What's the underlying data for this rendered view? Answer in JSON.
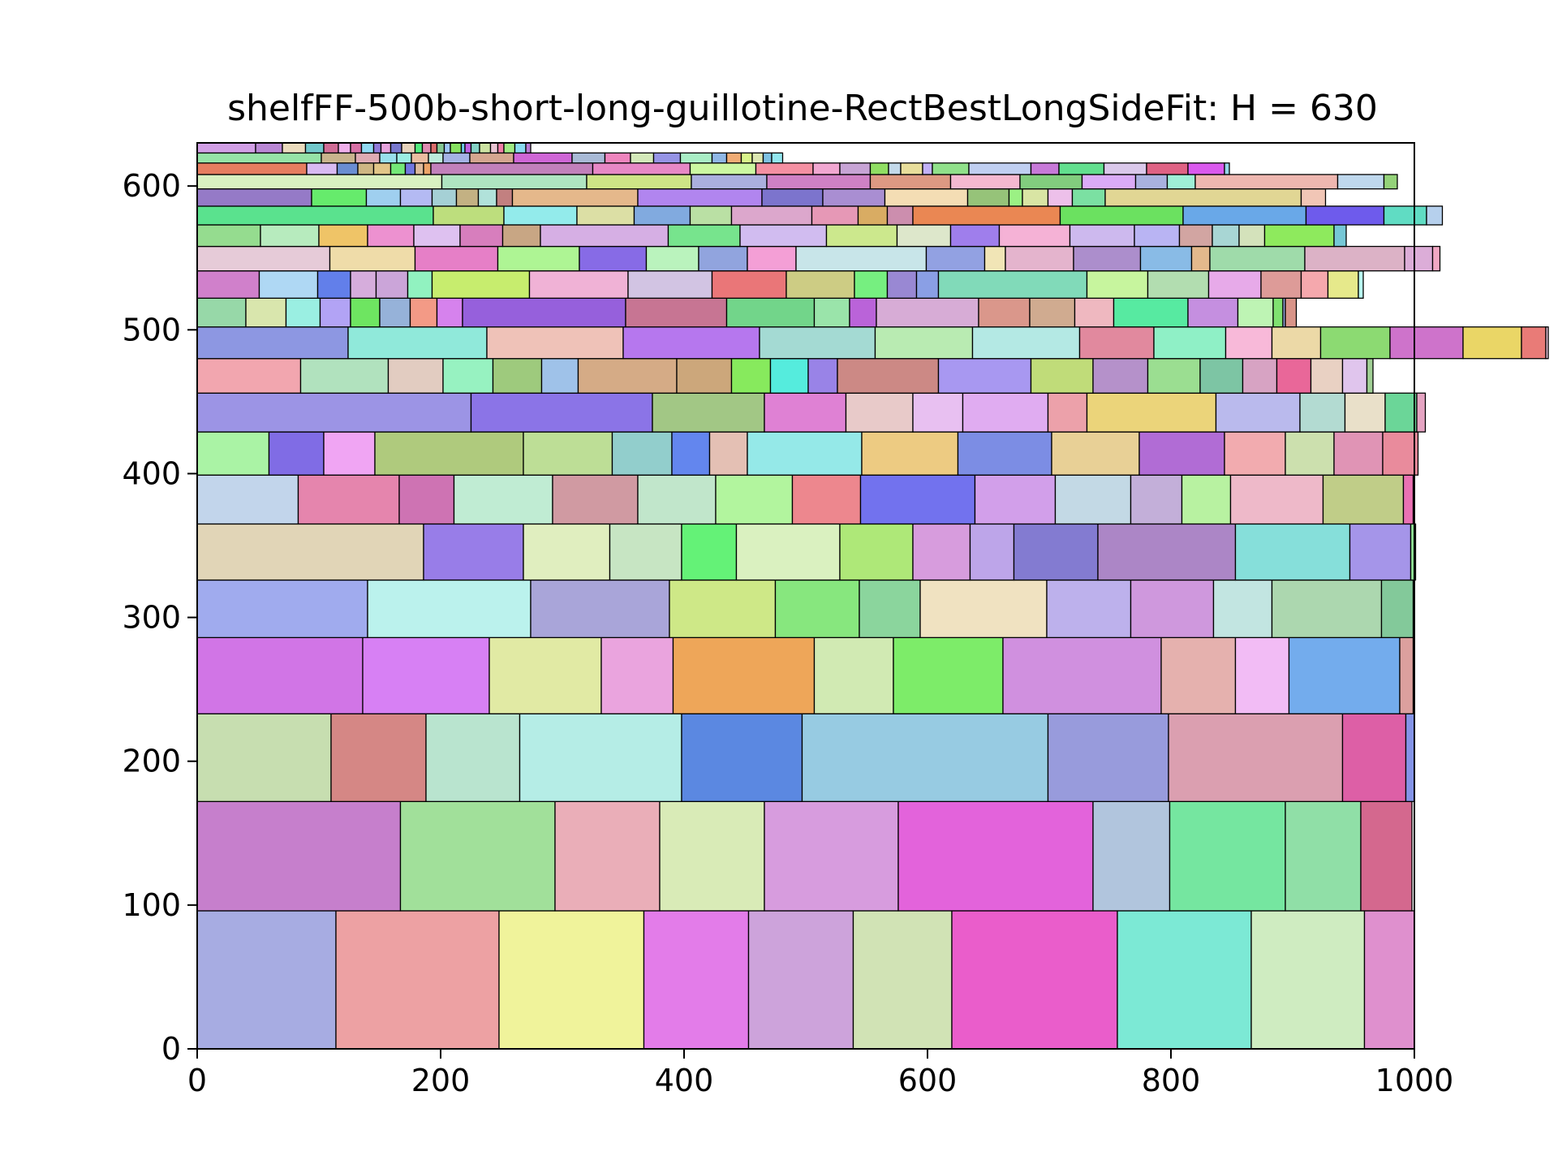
{
  "chart_data": {
    "type": "rectangle-packing",
    "title": "shelfFF-500b-short-long-guillotine-RectBestLongSideFit: H = 630",
    "xlabel": "",
    "ylabel": "",
    "xlim": [
      0,
      1000
    ],
    "ylim": [
      0,
      630
    ],
    "x_ticks": [
      "0",
      "200",
      "400",
      "600",
      "800",
      "1000"
    ],
    "y_ticks": [
      "0",
      "100",
      "200",
      "300",
      "400",
      "500",
      "600"
    ],
    "grid": false,
    "legend": "none",
    "shelves": [
      {
        "y": 0,
        "height": 96,
        "widths": [
          114,
          134,
          119,
          86,
          86,
          81,
          136,
          110,
          93,
          41
        ]
      },
      {
        "y": 96,
        "height": 76,
        "widths": [
          167,
          127,
          86,
          86,
          110,
          160,
          63,
          95,
          62,
          42
        ]
      },
      {
        "y": 172,
        "height": 61,
        "widths": [
          110,
          78,
          77,
          133,
          99,
          202,
          99,
          143,
          52,
          7
        ]
      },
      {
        "y": 233,
        "height": 53,
        "widths": [
          136,
          104,
          92,
          59,
          116,
          65,
          90,
          130,
          61,
          44,
          91,
          11
        ]
      },
      {
        "y": 286,
        "height": 40,
        "widths": [
          140,
          134,
          114,
          87,
          69,
          50,
          104,
          69,
          68,
          48,
          90,
          26
        ]
      },
      {
        "y": 326,
        "height": 39,
        "widths": [
          186,
          82,
          71,
          59,
          45,
          85,
          60,
          47,
          36,
          69,
          113,
          94,
          50,
          4
        ]
      },
      {
        "y": 365,
        "height": 34,
        "widths": [
          83,
          83,
          45,
          81,
          70,
          64,
          63,
          56,
          94,
          66,
          62,
          42,
          40,
          76,
          66,
          8
        ]
      },
      {
        "y": 399,
        "height": 30,
        "widths": [
          59,
          45,
          42,
          122,
          73,
          49,
          31,
          31,
          94,
          79,
          77,
          72,
          70,
          50,
          40,
          40,
          29
        ]
      },
      {
        "y": 429,
        "height": 27,
        "widths": [
          225,
          149,
          92,
          67,
          55,
          41,
          70,
          32,
          106,
          69,
          37,
          33,
          26,
          7
        ]
      },
      {
        "y": 456,
        "height": 24,
        "widths": [
          85,
          72,
          45,
          41,
          40,
          30,
          81,
          45,
          32,
          31,
          24,
          83,
          76,
          51,
          45,
          43,
          35,
          28,
          28,
          26,
          20,
          5
        ]
      },
      {
        "y": 480,
        "height": 22,
        "widths": [
          124,
          114,
          112,
          112,
          95,
          80,
          88,
          61,
          59,
          38,
          40,
          57,
          60,
          48,
          20,
          2
        ]
      },
      {
        "y": 502,
        "height": 20,
        "widths": [
          40,
          33,
          28,
          25,
          24,
          25,
          22,
          21,
          134,
          83,
          72,
          29,
          22,
          84,
          42,
          37,
          32,
          61,
          41,
          29,
          8,
          2,
          9
        ]
      },
      {
        "y": 522,
        "height": 19,
        "widths": [
          51,
          48,
          27,
          21,
          26,
          20,
          80,
          81,
          69,
          61,
          56,
          27,
          24,
          18,
          122,
          50,
          50,
          43,
          33,
          22,
          25,
          4
        ]
      },
      {
        "y": 541,
        "height": 17,
        "widths": [
          109,
          70,
          68,
          67,
          55,
          43,
          40,
          40,
          107,
          48,
          17,
          56,
          55,
          42,
          15,
          78,
          82,
          23,
          6
        ]
      },
      {
        "y": 558,
        "height": 15,
        "widths": [
          52,
          48,
          40,
          38,
          38,
          35,
          31,
          105,
          59,
          71,
          58,
          44,
          40,
          58,
          53,
          37,
          27,
          22,
          21,
          57,
          10
        ]
      },
      {
        "y": 573,
        "height": 13,
        "widths": [
          194,
          58,
          60,
          47,
          46,
          34,
          66,
          38,
          24,
          21,
          121,
          101,
          101,
          64,
          35,
          13
        ]
      },
      {
        "y": 586,
        "height": 12,
        "widths": [
          94,
          45,
          28,
          26,
          20,
          18,
          15,
          13,
          103,
          102,
          50,
          51,
          68,
          34,
          11,
          21,
          20,
          27,
          161,
          20
        ]
      },
      {
        "y": 598,
        "height": 10,
        "widths": [
          201,
          119,
          86,
          62,
          85,
          66,
          57,
          51,
          44,
          26,
          23,
          117,
          38,
          11
        ]
      },
      {
        "y": 608,
        "height": 8,
        "widths": [
          90,
          25,
          17,
          13,
          14,
          12,
          8,
          7,
          6,
          133,
          80,
          54,
          47,
          22,
          25,
          15,
          10,
          18,
          8,
          30,
          51,
          23,
          37,
          35,
          34,
          30,
          4
        ]
      },
      {
        "y": 616,
        "height": 7,
        "widths": [
          102,
          28,
          20,
          14,
          12,
          14,
          12,
          22,
          36,
          48,
          27,
          21,
          19,
          22,
          26,
          12,
          12,
          9,
          9,
          7,
          9
        ]
      },
      {
        "y": 623,
        "height": 7,
        "widths": [
          48,
          22,
          19,
          15,
          12,
          10,
          9,
          10,
          6,
          8,
          9,
          11,
          6,
          7,
          5,
          6,
          5,
          9,
          3,
          5,
          7,
          9,
          6,
          5,
          9,
          9,
          4
        ]
      }
    ]
  }
}
